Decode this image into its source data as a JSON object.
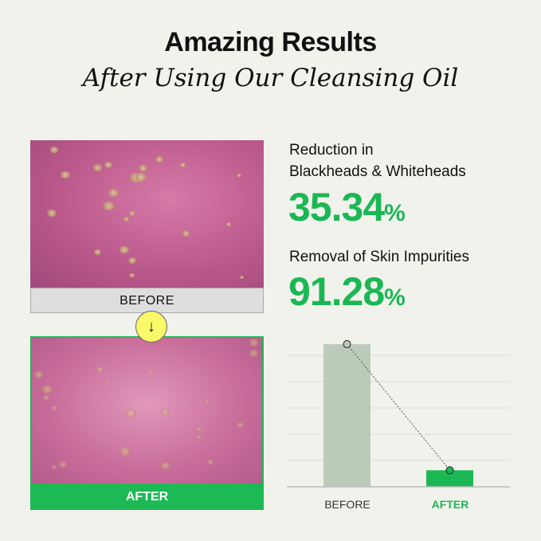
{
  "header": {
    "title": "Amazing Results",
    "subtitle": "After Using Our Cleansing Oil"
  },
  "images": {
    "before_label": "BEFORE",
    "after_label": "AFTER",
    "arrow_icon": "arrow-down-icon"
  },
  "stats": [
    {
      "label_line1": "Reduction in",
      "label_line2": "Blackheads & Whiteheads",
      "value": "35.34",
      "unit": "%"
    },
    {
      "label_line1": "Removal of Skin Impurities",
      "value": "91.28",
      "unit": "%"
    }
  ],
  "colors": {
    "accent": "#1cb755",
    "before_bar": "#bccbb9",
    "highlight": "#fbf86a",
    "background": "#f2f2ec"
  },
  "chart_data": {
    "type": "bar",
    "categories": [
      "BEFORE",
      "AFTER"
    ],
    "values": [
      100,
      11.6
    ],
    "ylim": [
      0,
      110
    ],
    "grid": true,
    "xlabel": "",
    "ylabel": "",
    "connector": "dotted line between bar tops"
  }
}
